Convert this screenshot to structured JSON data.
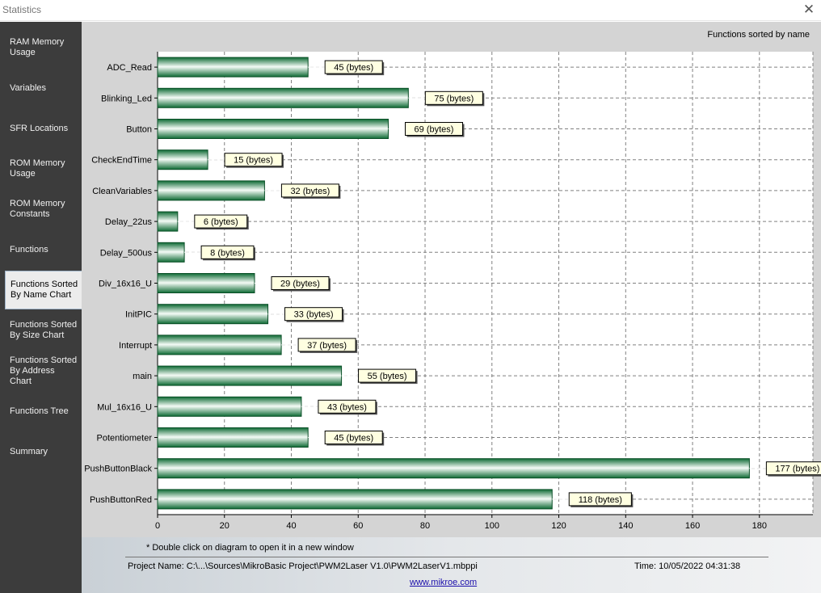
{
  "window": {
    "title": "Statistics",
    "close_glyph": "✕"
  },
  "sidebar": {
    "items": [
      {
        "label": "RAM Memory Usage",
        "active": false
      },
      {
        "label": "Variables",
        "active": false
      },
      {
        "label": "SFR Locations",
        "active": false
      },
      {
        "label": "ROM Memory Usage",
        "active": false
      },
      {
        "label": "ROM Memory Constants",
        "active": false
      },
      {
        "label": "Functions",
        "active": false
      },
      {
        "label": "Functions Sorted By Name Chart",
        "active": true
      },
      {
        "label": "Functions Sorted By Size Chart",
        "active": false
      },
      {
        "label": "Functions Sorted By Address Chart",
        "active": false
      },
      {
        "label": "Functions Tree",
        "active": false
      },
      {
        "label": "Summary",
        "active": false
      }
    ]
  },
  "chart_data": {
    "type": "bar",
    "orientation": "horizontal",
    "title": "Functions sorted by name",
    "categories": [
      "ADC_Read",
      "Blinking_Led",
      "Button",
      "CheckEndTime",
      "CleanVariables",
      "Delay_22us",
      "Delay_500us",
      "Div_16x16_U",
      "InitPIC",
      "Interrupt",
      "main",
      "Mul_16x16_U",
      "Potentiometer",
      "PushButtonBlack",
      "PushButtonRed"
    ],
    "values": [
      45,
      75,
      69,
      15,
      32,
      6,
      8,
      29,
      33,
      37,
      55,
      43,
      45,
      177,
      118
    ],
    "data_labels": [
      "45 (bytes)",
      "75 (bytes)",
      "69 (bytes)",
      "15 (bytes)",
      "32 (bytes)",
      "6 (bytes)",
      "8 (bytes)",
      "29 (bytes)",
      "33 (bytes)",
      "37 (bytes)",
      "55 (bytes)",
      "43 (bytes)",
      "45 (bytes)",
      "177 (bytes)",
      "118 (bytes)"
    ],
    "xticks": [
      0,
      20,
      40,
      60,
      80,
      100,
      120,
      140,
      160,
      180
    ],
    "xlim": [
      0,
      196
    ],
    "xlabel": "",
    "ylabel": "",
    "grid": true,
    "bar_color": "#1a8a4a"
  },
  "footer": {
    "note": "* Double click on diagram to open it in a new window",
    "project": "Project Name: C:\\...\\Sources\\MikroBasic Project\\PWM2Laser V1.0\\PWM2LaserV1.mbppi",
    "time": "Time: 10/05/2022 04:31:38",
    "link": "www.mikroe.com"
  }
}
